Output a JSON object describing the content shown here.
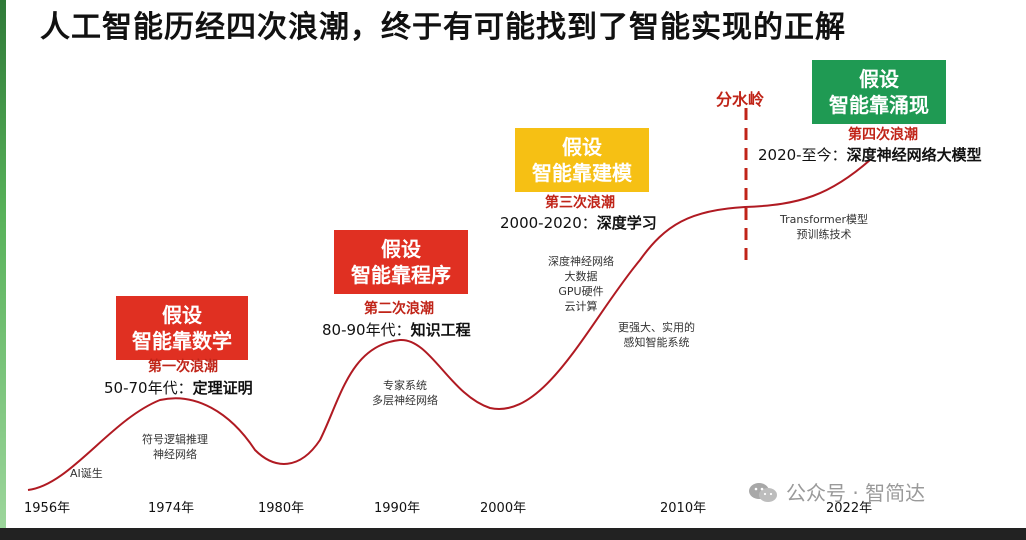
{
  "title": "人工智能历经四次浪潮，终于有可能找到了智能实现的正解",
  "boxes": [
    {
      "line1": "假设",
      "line2": "智能靠数学",
      "color": "#e03022"
    },
    {
      "line1": "假设",
      "line2": "智能靠程序",
      "color": "#e03022"
    },
    {
      "line1": "假设",
      "line2": "智能靠建模",
      "color": "#f6c014"
    },
    {
      "line1": "假设",
      "line2": "智能靠涌现",
      "color": "#1f9a53"
    }
  ],
  "waves": [
    {
      "name": "第一次浪潮",
      "period": "50-70年代：",
      "topic": "定理证明"
    },
    {
      "name": "第二次浪潮",
      "period": "80-90年代：",
      "topic": "知识工程"
    },
    {
      "name": "第三次浪潮",
      "period": "2000-2020：",
      "topic": "深度学习"
    },
    {
      "name": "第四次浪潮",
      "period": "2020-至今：",
      "topic": "深度神经网络大模型"
    }
  ],
  "notes": {
    "ai_birth": "AI诞生",
    "symbolic": [
      "符号逻辑推理",
      "神经网络"
    ],
    "expert": [
      "专家系统",
      "多层神经网络"
    ],
    "deep": [
      "深度神经网络",
      "大数据",
      "GPU硬件",
      "云计算"
    ],
    "perception": [
      "更强大、实用的",
      "感知智能系统"
    ],
    "transformer": [
      "Transformer模型",
      "预训练技术"
    ]
  },
  "watershed": "分水岭",
  "years": [
    "1956年",
    "1974年",
    "1980年",
    "1990年",
    "2000年",
    "2010年",
    "2022年"
  ],
  "watermark": "公众号 · 智简达"
}
